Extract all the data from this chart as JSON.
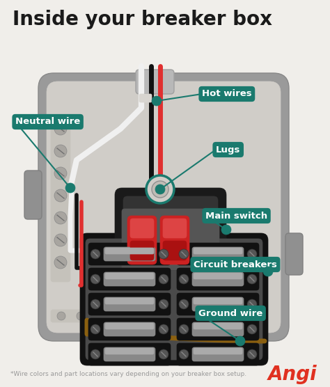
{
  "title": "Inside your breaker box",
  "title_fontsize": 20,
  "title_color": "#1a1a1a",
  "bg_color": "#f0eeea",
  "footnote": "*Wire colors and part locations vary depending on your breaker box setup.",
  "footnote_color": "#999999",
  "brand": "Angi",
  "brand_color": "#e03020",
  "label_bg_color": "#1a7a6e",
  "label_text_color": "#ffffff",
  "panel_outer_color": "#9a9a9a",
  "panel_inner_color": "#d0cdc8",
  "panel_shadow_color": "#b0ada8",
  "neutral_bar_color": "#c5c2bb",
  "ground_bar_color": "#c5c2bb",
  "conduit_color": "#b0b0b0",
  "main_sw_body": "#1a1a1a",
  "main_sw_inner": "#333333",
  "main_sw_red": "#cc2222",
  "main_sw_gray": "#888888",
  "breaker_outer": "#111111",
  "breaker_inner": "#555555",
  "breaker_toggle": "#888888",
  "wire_white": "#f0f0f0",
  "wire_black": "#111111",
  "wire_red": "#e03030",
  "wire_brown": "#8B6010"
}
